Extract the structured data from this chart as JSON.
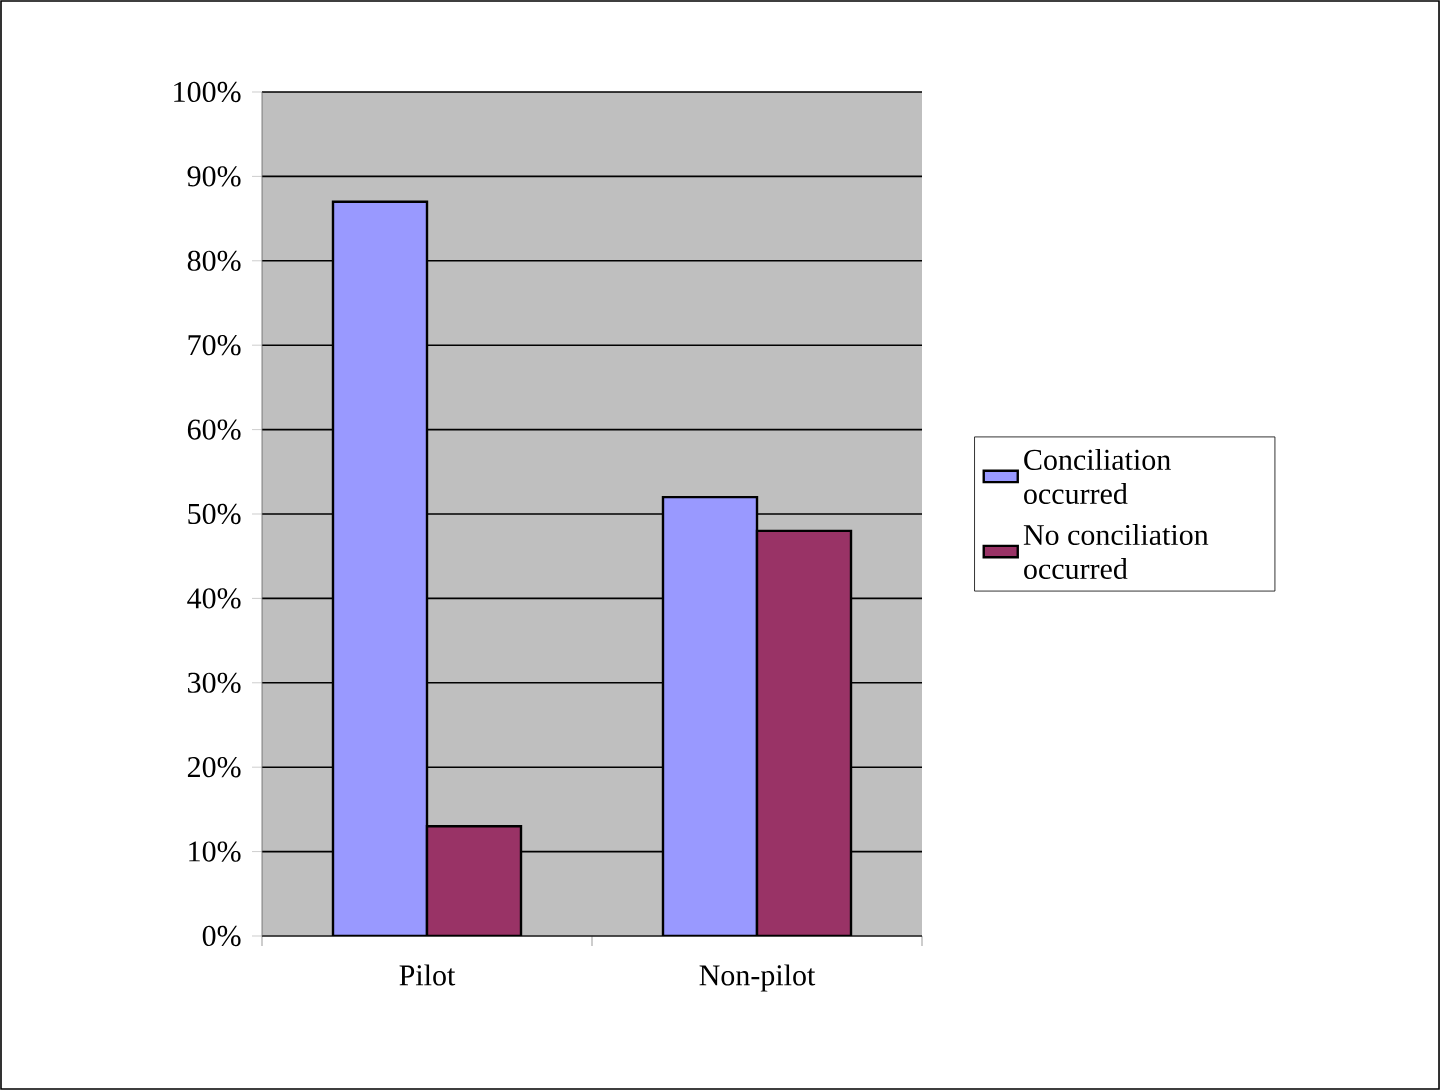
{
  "chart_data": {
    "type": "bar",
    "categories": [
      "Pilot",
      "Non-pilot"
    ],
    "series": [
      {
        "name": "Conciliation occurred",
        "color": "#9999ff",
        "values": [
          87,
          52
        ]
      },
      {
        "name": "No conciliation occurred",
        "color": "#993366",
        "values": [
          13,
          48
        ]
      }
    ],
    "ylim": [
      0,
      100
    ],
    "yticks": [
      {
        "value": 0,
        "label": "0%"
      },
      {
        "value": 10,
        "label": "10%"
      },
      {
        "value": 20,
        "label": "20%"
      },
      {
        "value": 30,
        "label": "30%"
      },
      {
        "value": 40,
        "label": "40%"
      },
      {
        "value": 50,
        "label": "50%"
      },
      {
        "value": 60,
        "label": "60%"
      },
      {
        "value": 70,
        "label": "70%"
      },
      {
        "value": 80,
        "label": "80%"
      },
      {
        "value": 90,
        "label": "90%"
      },
      {
        "value": 100,
        "label": "100%"
      }
    ],
    "grid": "y",
    "legend": "right"
  }
}
